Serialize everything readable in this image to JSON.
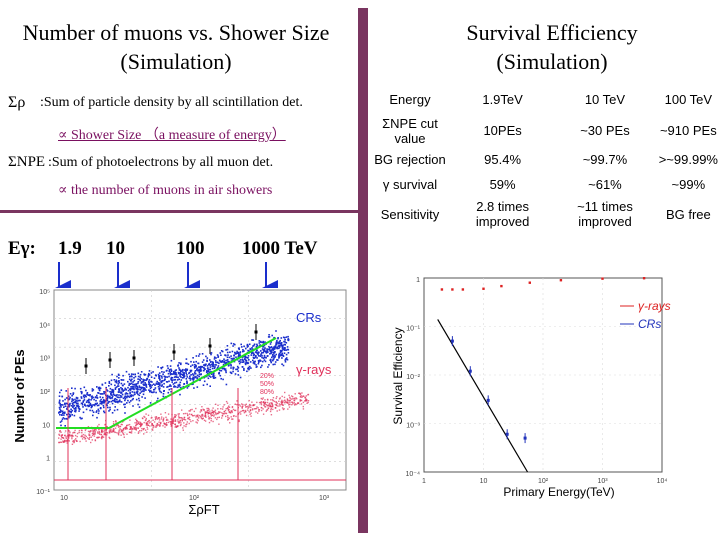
{
  "left": {
    "title_line1": "Number of muons vs. Shower Size",
    "title_line2": "(Simulation)",
    "def1_symbol": "Σρ",
    "def1_text": ":Sum of particle density by all scintillation det.",
    "def1_prop": "∝ Shower Size （a measure of energy）",
    "def2_symbol": "ΣNPE",
    "def2_text": ":Sum of photoelectrons by all muon det.",
    "def2_prop": "∝ the number of muons in air showers",
    "energy_label": "Eγ:",
    "energy_ticks": [
      "1.9",
      "10",
      "100",
      "1000 TeV"
    ]
  },
  "right": {
    "title_line1": "Survival Efficiency",
    "title_line2": "(Simulation)"
  },
  "table": {
    "rows": [
      {
        "head": "Energy",
        "cells": [
          "1.9TeV",
          "10 TeV",
          "100 TeV"
        ]
      },
      {
        "head": "ΣNPE cut value",
        "cells": [
          "10PEs",
          "~30 PEs",
          "~910 PEs"
        ]
      },
      {
        "head": "BG rejection",
        "cells": [
          "95.4%",
          "~99.7%",
          ">~99.99%"
        ]
      },
      {
        "head": "γ survival",
        "cells": [
          "59%",
          "~61%",
          "~99%"
        ]
      },
      {
        "head": "Sensitivity",
        "cells": [
          "2.8 times improved",
          "~11 times improved",
          "BG free"
        ]
      }
    ]
  },
  "chart_data": [
    {
      "type": "scatter",
      "title": "",
      "xlabel": "ΣρFT",
      "ylabel": "Number of PEs",
      "log_x": true,
      "log_y": true,
      "x_tick_labels": [
        "10",
        "10²",
        "10³"
      ],
      "y_tick_labels": [
        "10⁵",
        "10⁴",
        "10³",
        "10²",
        "10",
        "1",
        "10⁻¹"
      ],
      "series": [
        {
          "name": "CRs",
          "color": "#1a2ecc"
        },
        {
          "name": "γ-rays",
          "color": "#e0305a"
        }
      ],
      "annotations": [
        "20%",
        "50%",
        "80%"
      ],
      "cut_line_color": "#22dd22"
    },
    {
      "type": "scatter",
      "title": "",
      "xlabel": "Primary Energy(TeV)",
      "ylabel": "Survival Efficiency",
      "log_x": true,
      "log_y": true,
      "x_tick_labels": [
        "1",
        "10",
        "10²",
        "10³",
        "10⁴"
      ],
      "y_tick_labels": [
        "1",
        "10⁻¹",
        "10⁻²",
        "10⁻³",
        "10⁻⁴"
      ],
      "series": [
        {
          "name": "γ-rays",
          "color": "#dd2222",
          "x": [
            2,
            3,
            4.5,
            10,
            20,
            60,
            200,
            1000,
            5000
          ],
          "y": [
            0.58,
            0.58,
            0.58,
            0.6,
            0.68,
            0.8,
            0.9,
            0.97,
            0.99
          ]
        },
        {
          "name": "CRs",
          "color": "#2233bb",
          "x": [
            3,
            6,
            12,
            25,
            50
          ],
          "y": [
            0.05,
            0.012,
            0.003,
            0.0006,
            0.0005
          ]
        }
      ],
      "fit_line": {
        "x": [
          1.7,
          55
        ],
        "y": [
          0.14,
          0.0001
        ]
      }
    }
  ]
}
